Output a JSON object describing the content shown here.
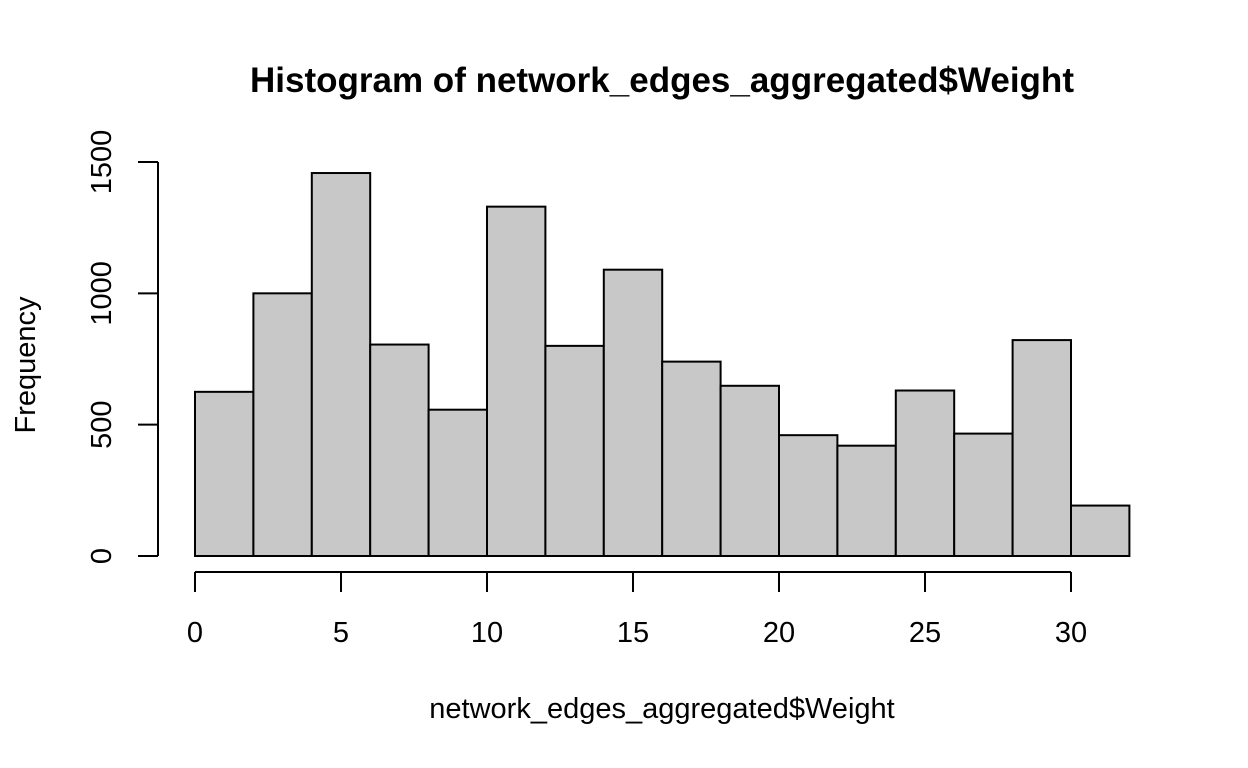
{
  "colors": {
    "bar_fill": "#c8c8c8",
    "bar_stroke": "#000000",
    "background": "#ffffff"
  },
  "chart_data": {
    "type": "bar",
    "title": "Histogram of network_edges_aggregated$Weight",
    "xlabel": "network_edges_aggregated$Weight",
    "ylabel": "Frequency",
    "bin_edges": [
      0,
      2,
      4,
      6,
      8,
      10,
      12,
      14,
      16,
      18,
      20,
      22,
      24,
      26,
      28,
      30,
      32
    ],
    "values": [
      625,
      1000,
      1458,
      805,
      557,
      1330,
      800,
      1090,
      740,
      648,
      460,
      420,
      630,
      466,
      822,
      192
    ],
    "xlim": [
      0,
      30
    ],
    "ylim": [
      0,
      1500
    ],
    "x_ticks": [
      0,
      5,
      10,
      15,
      20,
      25,
      30
    ],
    "x_tick_labels": [
      "0",
      "5",
      "10",
      "15",
      "20",
      "25",
      "30"
    ],
    "y_ticks": [
      0,
      500,
      1000,
      1500
    ],
    "y_tick_labels": [
      "0",
      "500",
      "1000",
      "1500"
    ],
    "grid": false,
    "legend": "none"
  }
}
